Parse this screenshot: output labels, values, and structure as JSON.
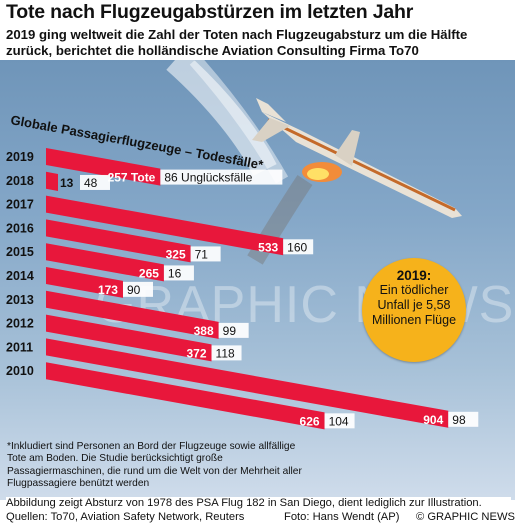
{
  "title": "Tote nach Flugzeugabstürzen im letzten Jahr",
  "subtitle_lines": [
    "2019 ging weltweit die Zahl der Toten nach Flugzeugabsturz um die Hälfte",
    "zurück, berichtet die holländische Aviation Consulting Firma To70"
  ],
  "chart_data": {
    "type": "bar",
    "title": "Globale Passagierflugzeuge – Todesfälle*",
    "categories": [
      "2019",
      "2018",
      "2017",
      "2016",
      "2015",
      "2014",
      "2013",
      "2012",
      "2011",
      "2010"
    ],
    "series": [
      {
        "name": "Tote",
        "values": [
          257,
          13,
          533,
          325,
          265,
          173,
          388,
          372,
          904,
          626
        ]
      },
      {
        "name": "Unglücksfälle",
        "values": [
          86,
          48,
          160,
          71,
          16,
          90,
          99,
          118,
          98,
          104
        ]
      }
    ],
    "first_value_labels": [
      "257 Tote",
      "86 Unglücksfälle"
    ],
    "colors": {
      "bar": "#e8173b",
      "count_box": "#ffffff"
    }
  },
  "callout": {
    "year": "2019:",
    "text": "Ein tödlicher Unfall je 5,58 Millionen Flüge"
  },
  "footnote": "*Inkludiert sind Personen an Bord der Flugzeuge sowie allfällige Tote am Boden. Die Studie berücksichtigt große Passagiermaschinen, die rund um die Welt von der Mehrheit aller Flugpassagiere benützt werden",
  "caption": "Abbildung zeigt Absturz von 1978 des PSA Flug 182 in San Diego, dient lediglich zur Illustration.",
  "sources": "Quellen: To70, Aviation Safety Network, Reuters",
  "photo_credit": "Foto: Hans Wendt (AP)",
  "brand": "© GRAPHIC NEWS",
  "watermark": "GRAPHIC NEWS"
}
